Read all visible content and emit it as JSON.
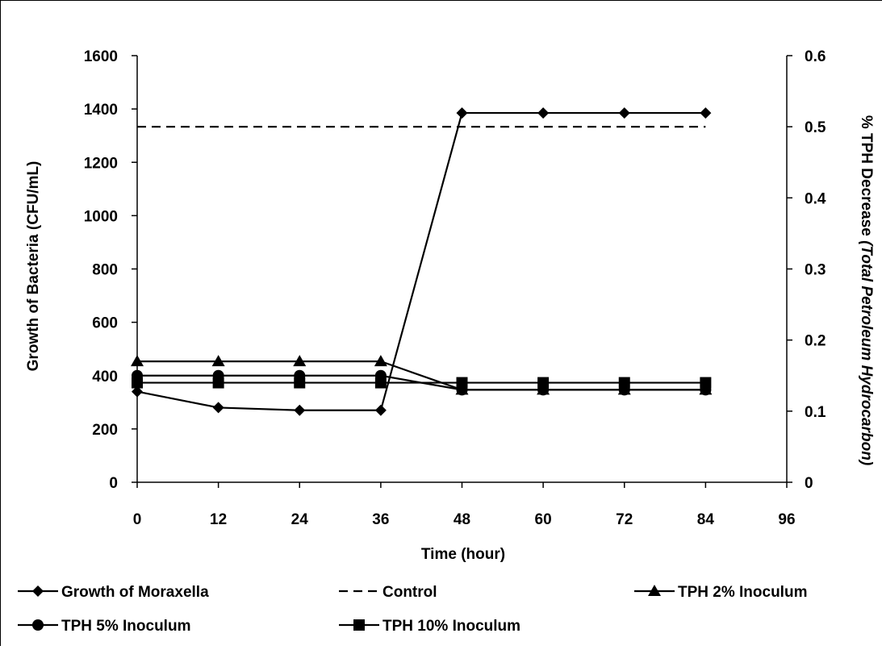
{
  "chart_data": {
    "type": "line",
    "title": "",
    "xlabel": "Time (hour)",
    "ylabel": "Growth of Bacteria (CFU/mL)",
    "y2label_main": "% TPH Decrease ",
    "y2label_italic": "(Total Petroleum Hydrocarbon)",
    "xlim": [
      0,
      96
    ],
    "ylim": [
      0,
      1600
    ],
    "y2lim": [
      0,
      0.6
    ],
    "x_ticks": [
      "0",
      "12",
      "24",
      "36",
      "48",
      "60",
      "72",
      "84",
      "96"
    ],
    "y_ticks": [
      "0",
      "200",
      "400",
      "600",
      "800",
      "1000",
      "1200",
      "1400",
      "1600"
    ],
    "y2_ticks": [
      "0",
      "0.1",
      "0.2",
      "0.3",
      "0.4",
      "0.5",
      "0.6"
    ],
    "x_tick_values": [
      0,
      12,
      24,
      36,
      48,
      60,
      72,
      84,
      96
    ],
    "y_tick_values": [
      0,
      200,
      400,
      600,
      800,
      1000,
      1200,
      1400,
      1600
    ],
    "y2_tick_values": [
      0,
      0.1,
      0.2,
      0.3,
      0.4,
      0.5,
      0.6
    ],
    "grid": false,
    "legend_position": "bottom",
    "series": [
      {
        "name": "Growth of Moraxella",
        "axis": "left",
        "marker": "diamond",
        "dash": "solid",
        "x": [
          0,
          12,
          24,
          36,
          48,
          60,
          72,
          84
        ],
        "y": [
          340,
          280,
          270,
          270,
          1385,
          1385,
          1385,
          1385
        ]
      },
      {
        "name": "Control",
        "axis": "right",
        "marker": "none",
        "dash": "dashed",
        "x": [
          0,
          84
        ],
        "y": [
          0.5,
          0.5
        ]
      },
      {
        "name": "TPH 2% Inoculum",
        "axis": "right",
        "marker": "triangle",
        "dash": "solid",
        "x": [
          0,
          12,
          24,
          36,
          48,
          60,
          72,
          84
        ],
        "y": [
          0.17,
          0.17,
          0.17,
          0.17,
          0.13,
          0.13,
          0.13,
          0.13
        ]
      },
      {
        "name": "TPH 5% Inoculum",
        "axis": "right",
        "marker": "circle",
        "dash": "solid",
        "x": [
          0,
          12,
          24,
          36,
          48,
          60,
          72,
          84
        ],
        "y": [
          0.15,
          0.15,
          0.15,
          0.15,
          0.13,
          0.13,
          0.13,
          0.13
        ]
      },
      {
        "name": "TPH 10% Inoculum",
        "axis": "right",
        "marker": "square",
        "dash": "solid",
        "x": [
          0,
          12,
          24,
          36,
          48,
          60,
          72,
          84
        ],
        "y": [
          0.14,
          0.14,
          0.14,
          0.14,
          0.14,
          0.14,
          0.14,
          0.14
        ]
      }
    ]
  }
}
